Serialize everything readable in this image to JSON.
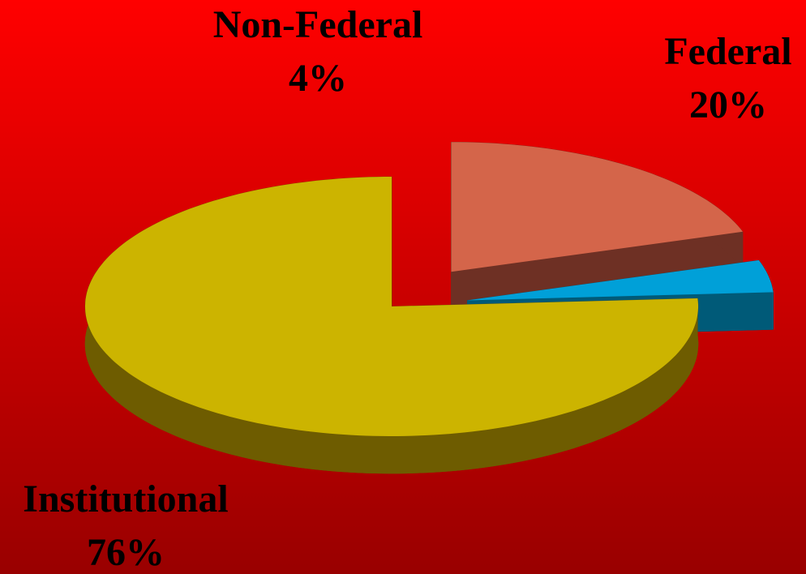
{
  "chart_data": {
    "type": "pie",
    "categories": [
      "Federal",
      "Non-Federal",
      "Institutional"
    ],
    "values": [
      20,
      4,
      76
    ],
    "value_labels": [
      "20%",
      "4%",
      "76%"
    ],
    "colors": [
      "#d4654a",
      "#00a0d8",
      "#ccb400"
    ],
    "side_colors": [
      "#6e3024",
      "#005a78",
      "#6e5c00"
    ]
  }
}
